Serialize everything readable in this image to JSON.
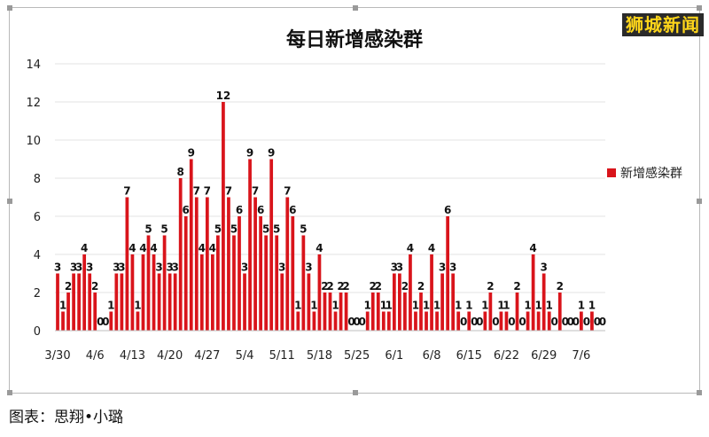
{
  "watermark": "狮城新闻",
  "caption": "图表：思翔•小璐",
  "chart_data": {
    "type": "bar",
    "title": "每日新增感染群",
    "xlabel": "",
    "ylabel": "",
    "ylim": [
      0,
      14
    ],
    "yticks": [
      0,
      2,
      4,
      6,
      8,
      10,
      12,
      14
    ],
    "grid": true,
    "legend_position": "right",
    "color": "#d9141b",
    "start_date": "3/30",
    "x_tick_labels": [
      "3/30",
      "4/6",
      "4/13",
      "4/20",
      "4/27",
      "5/4",
      "5/11",
      "5/18",
      "5/25",
      "6/1",
      "6/8",
      "6/15",
      "6/22",
      "6/29",
      "7/6"
    ],
    "series": [
      {
        "name": "新增感染群",
        "values": [
          3,
          1,
          2,
          3,
          3,
          4,
          3,
          2,
          0,
          0,
          1,
          3,
          3,
          7,
          4,
          1,
          4,
          5,
          4,
          3,
          5,
          3,
          3,
          8,
          6,
          9,
          7,
          4,
          7,
          4,
          5,
          12,
          7,
          5,
          6,
          3,
          9,
          7,
          6,
          5,
          9,
          5,
          3,
          7,
          6,
          1,
          5,
          3,
          1,
          4,
          2,
          2,
          1,
          2,
          2,
          0,
          0,
          0,
          1,
          2,
          2,
          1,
          1,
          3,
          3,
          2,
          4,
          1,
          2,
          1,
          4,
          1,
          3,
          6,
          3,
          1,
          0,
          1,
          0,
          0,
          1,
          2,
          0,
          1,
          1,
          0,
          2,
          0,
          1,
          4,
          1,
          3,
          1,
          0,
          2,
          0,
          0,
          0,
          1,
          0,
          1,
          0,
          0
        ]
      }
    ]
  }
}
